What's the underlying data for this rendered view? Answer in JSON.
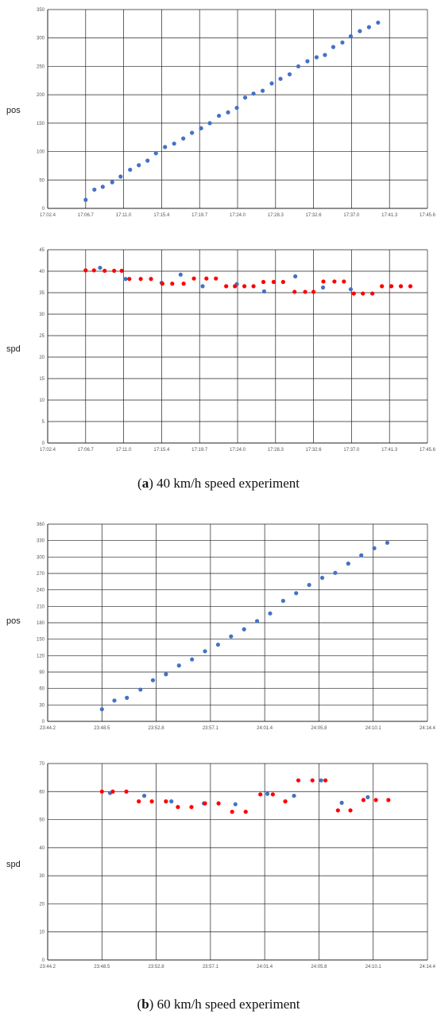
{
  "captions": {
    "a": {
      "letter": "a",
      "text": " 40 km/h speed experiment"
    },
    "b": {
      "letter": "b",
      "text": " 60 km/h speed experiment"
    }
  },
  "colors": {
    "blue": "#4472C4",
    "red": "#FF0000",
    "grid": "#222222"
  },
  "chart_data": [
    {
      "type": "scatter",
      "ylabel": "pos",
      "xticks": [
        "17:02.4",
        "17:06.7",
        "17:11.0",
        "17:15.4",
        "17:19.7",
        "17:24.0",
        "17:28.3",
        "17:32.6",
        "17:37.0",
        "17:41.3",
        "17:45.6"
      ],
      "yticks": [
        "0",
        "50",
        "100",
        "150",
        "200",
        "250",
        "300",
        "350"
      ],
      "ylim": [
        0,
        350
      ],
      "grid": true,
      "series": [
        {
          "color": "blue",
          "points": [
            [
              1.0,
              15
            ],
            [
              1.23,
              33
            ],
            [
              1.45,
              38
            ],
            [
              1.7,
              46
            ],
            [
              1.92,
              56
            ],
            [
              2.17,
              68
            ],
            [
              2.4,
              76
            ],
            [
              2.63,
              84
            ],
            [
              2.85,
              97
            ],
            [
              3.09,
              108
            ],
            [
              3.33,
              114
            ],
            [
              3.57,
              123
            ],
            [
              3.8,
              133
            ],
            [
              4.04,
              141
            ],
            [
              4.27,
              150
            ],
            [
              4.51,
              163
            ],
            [
              4.75,
              169
            ],
            [
              4.98,
              177
            ],
            [
              5.2,
              195
            ],
            [
              5.42,
              202
            ],
            [
              5.66,
              207
            ],
            [
              5.9,
              220
            ],
            [
              6.13,
              228
            ],
            [
              6.37,
              236
            ],
            [
              6.6,
              250
            ],
            [
              6.84,
              259
            ],
            [
              7.08,
              266
            ],
            [
              7.3,
              270
            ],
            [
              7.52,
              284
            ],
            [
              7.76,
              292
            ],
            [
              7.98,
              303
            ],
            [
              8.22,
              312
            ],
            [
              8.46,
              319
            ],
            [
              8.7,
              327
            ]
          ]
        }
      ]
    },
    {
      "type": "scatter",
      "ylabel": "spd",
      "xticks": [
        "17:02.4",
        "17:06.7",
        "17:11.0",
        "17:15.4",
        "17:19.7",
        "17:24.0",
        "17:28.3",
        "17:32.6",
        "17:37.0",
        "17:41.3",
        "17:45.6"
      ],
      "yticks": [
        "0",
        "5",
        "10",
        "15",
        "20",
        "25",
        "30",
        "35",
        "40",
        "45"
      ],
      "ylim": [
        0,
        45
      ],
      "grid": true,
      "series": [
        {
          "color": "blue",
          "points": [
            [
              1.38,
              40.8
            ],
            [
              2.05,
              38.2
            ],
            [
              3.0,
              37.3
            ],
            [
              3.5,
              39.2
            ],
            [
              4.08,
              36.5
            ],
            [
              4.98,
              37.0
            ],
            [
              5.7,
              35.3
            ],
            [
              6.52,
              38.8
            ],
            [
              7.25,
              36.2
            ],
            [
              7.98,
              35.8
            ]
          ]
        },
        {
          "color": "red",
          "points": [
            [
              1.0,
              40.2
            ],
            [
              1.22,
              40.2
            ],
            [
              1.5,
              40.1
            ],
            [
              1.75,
              40.1
            ],
            [
              1.95,
              40.1
            ],
            [
              2.15,
              38.2
            ],
            [
              2.45,
              38.2
            ],
            [
              2.72,
              38.2
            ],
            [
              3.02,
              37.1
            ],
            [
              3.28,
              37.1
            ],
            [
              3.58,
              37.1
            ],
            [
              3.85,
              38.3
            ],
            [
              4.18,
              38.3
            ],
            [
              4.43,
              38.3
            ],
            [
              4.7,
              36.5
            ],
            [
              4.93,
              36.5
            ],
            [
              5.18,
              36.5
            ],
            [
              5.42,
              36.5
            ],
            [
              5.68,
              37.5
            ],
            [
              5.95,
              37.5
            ],
            [
              6.2,
              37.5
            ],
            [
              6.5,
              35.2
            ],
            [
              6.78,
              35.2
            ],
            [
              7.0,
              35.2
            ],
            [
              7.26,
              37.6
            ],
            [
              7.55,
              37.6
            ],
            [
              7.8,
              37.6
            ],
            [
              8.06,
              34.8
            ],
            [
              8.3,
              34.8
            ],
            [
              8.55,
              34.8
            ],
            [
              8.8,
              36.5
            ],
            [
              9.05,
              36.5
            ],
            [
              9.3,
              36.5
            ],
            [
              9.55,
              36.5
            ]
          ]
        }
      ]
    },
    {
      "type": "scatter",
      "ylabel": "pos",
      "xticks": [
        "23:44.2",
        "23:48.5",
        "23:52.8",
        "23:57.1",
        "24:01.4",
        "24:05.8",
        "24:10.1",
        "24:14.4"
      ],
      "yticks": [
        "0",
        "30",
        "60",
        "90",
        "120",
        "150",
        "180",
        "210",
        "240",
        "270",
        "300",
        "330",
        "360"
      ],
      "ylim": [
        0,
        360
      ],
      "grid": true,
      "series": [
        {
          "color": "blue",
          "points": [
            [
              1.0,
              22
            ],
            [
              1.23,
              38
            ],
            [
              1.46,
              43
            ],
            [
              1.71,
              58
            ],
            [
              1.94,
              75
            ],
            [
              2.18,
              86
            ],
            [
              2.42,
              102
            ],
            [
              2.66,
              113
            ],
            [
              2.9,
              128
            ],
            [
              3.14,
              140
            ],
            [
              3.38,
              155
            ],
            [
              3.62,
              168
            ],
            [
              3.86,
              183
            ],
            [
              4.1,
              197
            ],
            [
              4.34,
              220
            ],
            [
              4.58,
              234
            ],
            [
              4.82,
              249
            ],
            [
              5.06,
              262
            ],
            [
              5.3,
              271
            ],
            [
              5.54,
              288
            ],
            [
              5.78,
              303
            ],
            [
              6.02,
              316
            ],
            [
              6.26,
              326
            ]
          ]
        }
      ]
    },
    {
      "type": "scatter",
      "ylabel": "spd",
      "xticks": [
        "23:44.2",
        "23:48.5",
        "23:52.8",
        "23:57.1",
        "24:01.4",
        "24:05.8",
        "24:10.1",
        "24:14.4"
      ],
      "yticks": [
        "0",
        "10",
        "20",
        "30",
        "40",
        "50",
        "60",
        "70"
      ],
      "ylim": [
        0,
        70
      ],
      "grid": true,
      "series": [
        {
          "color": "blue",
          "points": [
            [
              1.15,
              59.5
            ],
            [
              1.78,
              58.5
            ],
            [
              2.28,
              56.5
            ],
            [
              2.88,
              55.8
            ],
            [
              3.46,
              55.5
            ],
            [
              4.05,
              59.2
            ],
            [
              4.54,
              58.5
            ],
            [
              5.04,
              64.0
            ],
            [
              5.42,
              56.0
            ],
            [
              5.9,
              58.0
            ]
          ]
        },
        {
          "color": "red",
          "points": [
            [
              1.0,
              60.0
            ],
            [
              1.2,
              60.0
            ],
            [
              1.45,
              60.0
            ],
            [
              1.68,
              56.5
            ],
            [
              1.92,
              56.5
            ],
            [
              2.18,
              56.5
            ],
            [
              2.4,
              54.5
            ],
            [
              2.65,
              54.5
            ],
            [
              2.9,
              55.8
            ],
            [
              3.15,
              55.8
            ],
            [
              3.4,
              52.8
            ],
            [
              3.65,
              52.8
            ],
            [
              3.92,
              59.0
            ],
            [
              4.15,
              59.0
            ],
            [
              4.38,
              56.5
            ],
            [
              4.62,
              64.0
            ],
            [
              4.88,
              64.0
            ],
            [
              5.12,
              64.0
            ],
            [
              5.35,
              53.3
            ],
            [
              5.58,
              53.3
            ],
            [
              5.82,
              57.0
            ],
            [
              6.05,
              57.0
            ],
            [
              6.28,
              57.0
            ]
          ]
        }
      ]
    }
  ]
}
